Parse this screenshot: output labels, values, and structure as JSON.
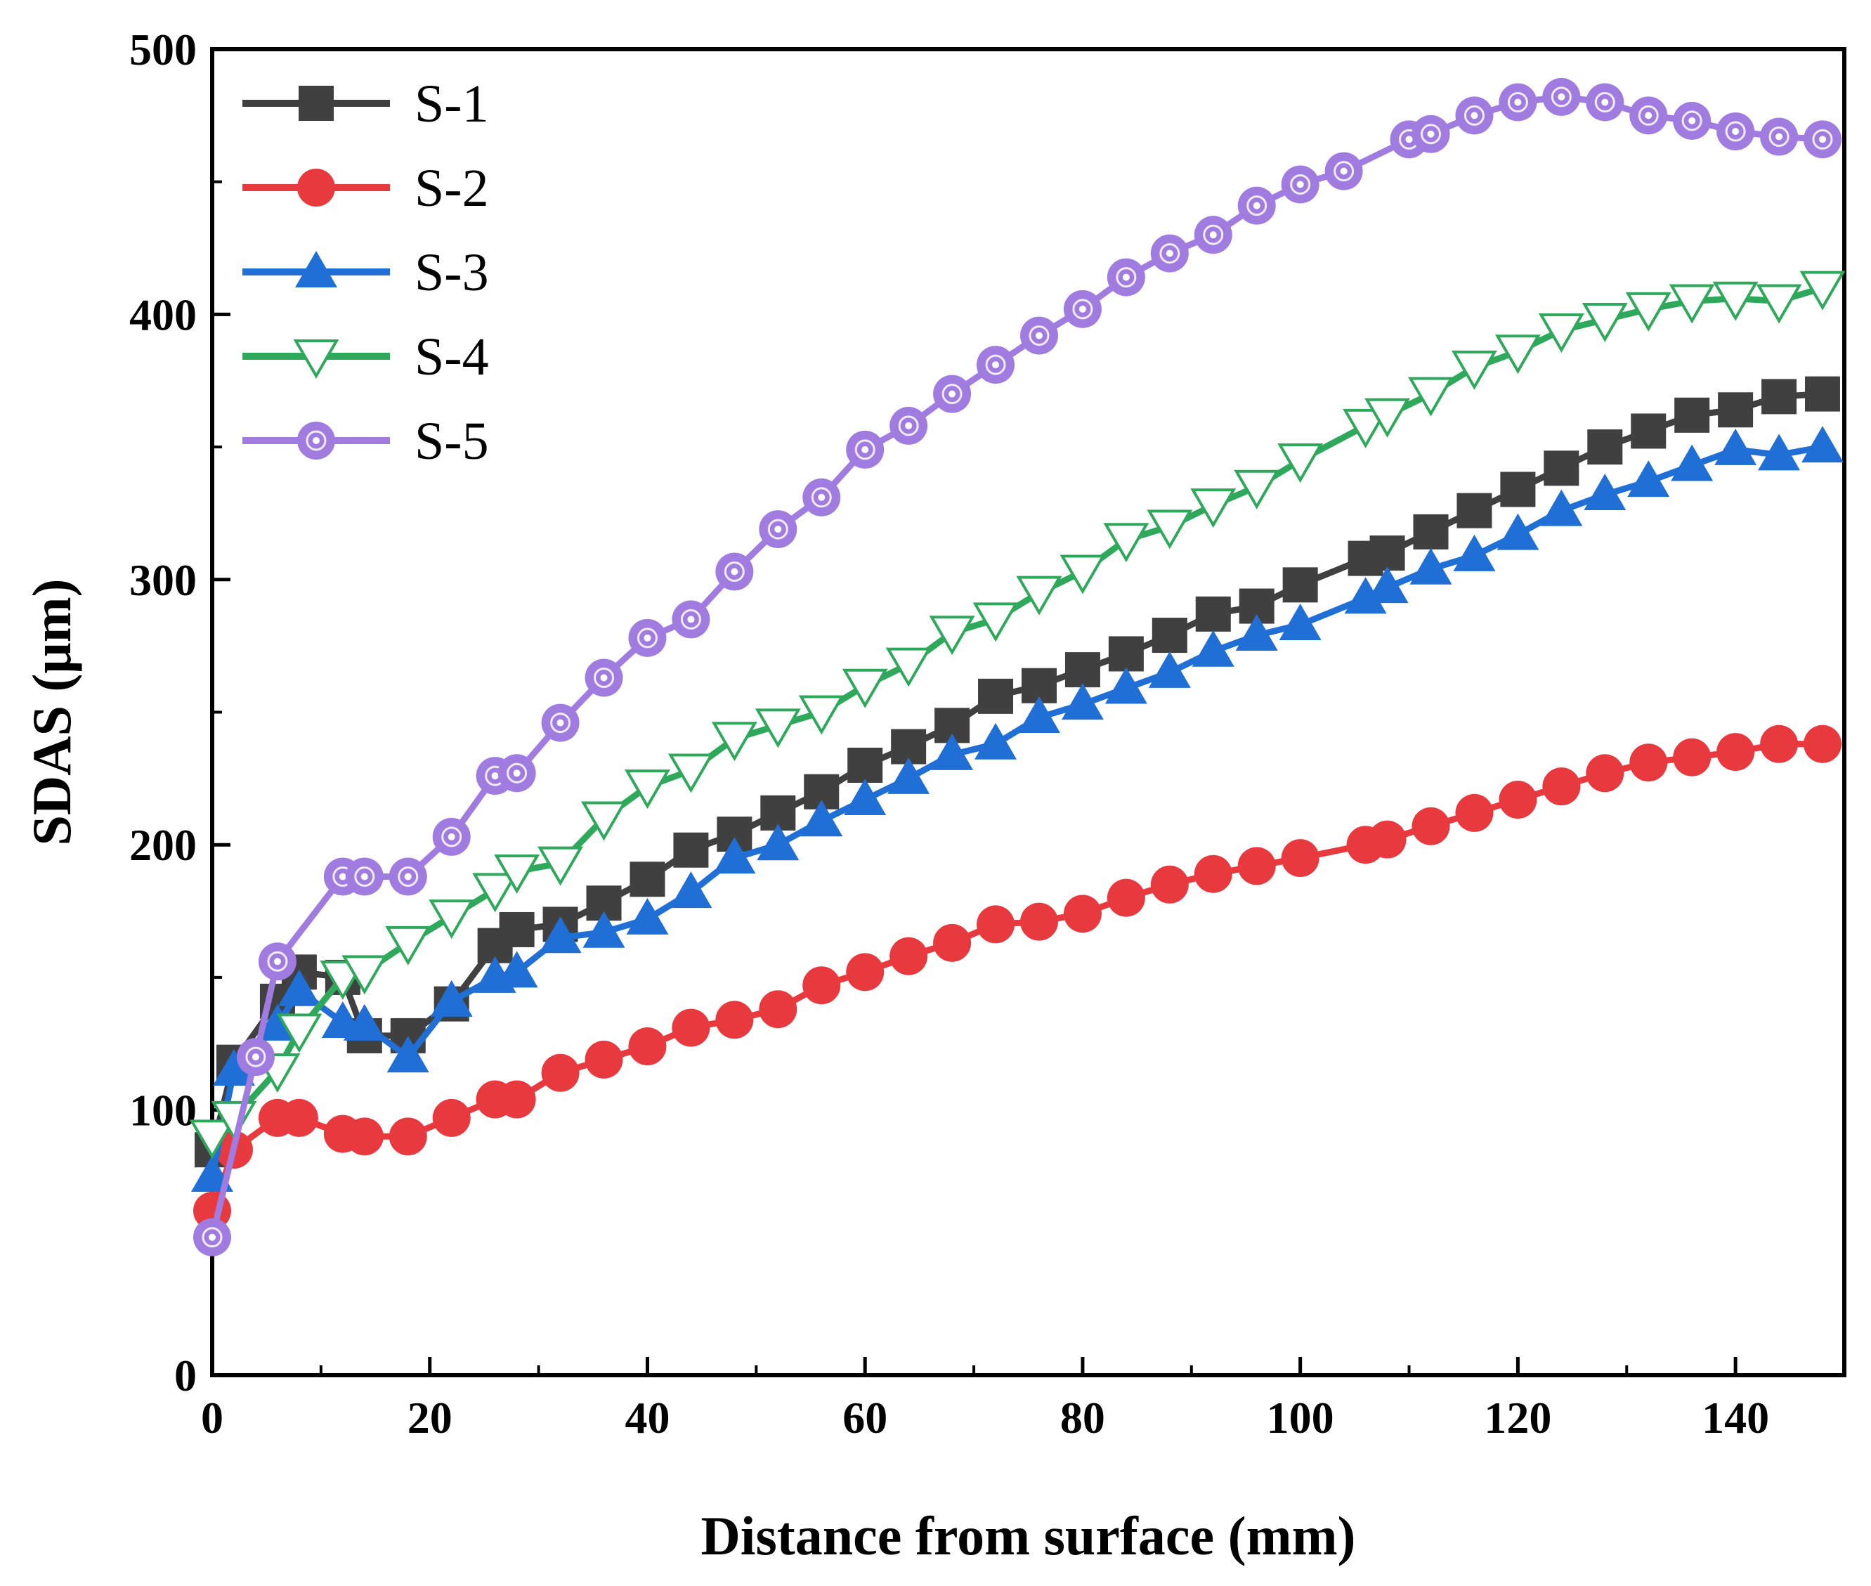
{
  "chart_data": {
    "type": "line",
    "title": "",
    "xlabel": "Distance from surface (mm)",
    "ylabel": "SDAS (μm)",
    "xlim": [
      0,
      150
    ],
    "ylim": [
      0,
      500
    ],
    "xticks": [
      0,
      20,
      40,
      60,
      80,
      100,
      120,
      140
    ],
    "xtick_labels": [
      "0",
      "20",
      "40",
      "60",
      "80",
      "100",
      "120",
      "140"
    ],
    "yticks": [
      0,
      100,
      200,
      300,
      400,
      500
    ],
    "ytick_labels": [
      "0",
      "100",
      "200",
      "300",
      "400",
      "500"
    ],
    "legend_position": "top-left",
    "grid": false,
    "series": [
      {
        "name": "S-1",
        "color": "#404040",
        "marker": "square",
        "filled": true,
        "x": [
          0,
          2,
          6,
          8,
          12,
          14,
          18,
          22,
          26,
          28,
          32,
          36,
          40,
          44,
          48,
          52,
          56,
          60,
          64,
          68,
          72,
          76,
          80,
          84,
          88,
          92,
          96,
          100,
          106,
          108,
          112,
          116,
          120,
          124,
          128,
          132,
          136,
          140,
          144,
          148
        ],
        "y": [
          85,
          118,
          141,
          152,
          150,
          128,
          128,
          140,
          162,
          168,
          170,
          178,
          187,
          198,
          204,
          212,
          220,
          230,
          237,
          245,
          256,
          260,
          266,
          272,
          279,
          287,
          290,
          298,
          308,
          310,
          318,
          326,
          334,
          342,
          350,
          356,
          362,
          364,
          369,
          370
        ]
      },
      {
        "name": "S-2",
        "color": "#e8393e",
        "marker": "circle",
        "filled": true,
        "x": [
          0,
          2,
          6,
          8,
          12,
          14,
          18,
          22,
          26,
          28,
          32,
          36,
          40,
          44,
          48,
          52,
          56,
          60,
          64,
          68,
          72,
          76,
          80,
          84,
          88,
          92,
          96,
          100,
          106,
          108,
          112,
          116,
          120,
          124,
          128,
          132,
          136,
          140,
          144,
          148
        ],
        "y": [
          62,
          85,
          97,
          97,
          91,
          90,
          90,
          97,
          104,
          104,
          114,
          119,
          124,
          131,
          134,
          138,
          147,
          152,
          158,
          163,
          170,
          171,
          174,
          180,
          185,
          189,
          192,
          195,
          200,
          202,
          207,
          212,
          217,
          222,
          227,
          231,
          233,
          235,
          238,
          238
        ]
      },
      {
        "name": "S-3",
        "color": "#1f6fd6",
        "marker": "triangle-up",
        "filled": true,
        "x": [
          0,
          2,
          6,
          8,
          12,
          14,
          18,
          22,
          26,
          28,
          32,
          36,
          40,
          44,
          48,
          52,
          56,
          60,
          64,
          68,
          72,
          76,
          80,
          84,
          88,
          92,
          96,
          100,
          106,
          108,
          112,
          116,
          120,
          124,
          128,
          132,
          136,
          140,
          144,
          148
        ],
        "y": [
          75,
          115,
          132,
          145,
          133,
          132,
          120,
          141,
          150,
          152,
          165,
          167,
          172,
          182,
          195,
          200,
          209,
          217,
          225,
          234,
          238,
          248,
          253,
          259,
          265,
          273,
          279,
          283,
          293,
          297,
          304,
          309,
          317,
          326,
          332,
          337,
          343,
          349,
          347,
          350
        ]
      },
      {
        "name": "S-4",
        "color": "#2ea85a",
        "marker": "triangle-down",
        "filled": false,
        "x": [
          0,
          2,
          6,
          8,
          12,
          14,
          18,
          22,
          26,
          28,
          32,
          36,
          40,
          44,
          48,
          52,
          56,
          60,
          64,
          68,
          72,
          76,
          80,
          84,
          88,
          92,
          96,
          100,
          106,
          108,
          112,
          116,
          120,
          124,
          128,
          132,
          136,
          140,
          144,
          148
        ],
        "y": [
          90,
          97,
          115,
          130,
          150,
          152,
          163,
          173,
          183,
          190,
          193,
          210,
          222,
          228,
          240,
          245,
          250,
          260,
          268,
          280,
          285,
          295,
          303,
          315,
          320,
          328,
          335,
          345,
          358,
          362,
          370,
          380,
          386,
          394,
          398,
          402,
          405,
          406,
          405,
          410
        ]
      },
      {
        "name": "S-5",
        "color": "#a07be0",
        "marker": "circle-ring",
        "filled": true,
        "x": [
          0,
          4,
          6,
          12,
          14,
          18,
          22,
          26,
          28,
          32,
          36,
          40,
          44,
          48,
          52,
          56,
          60,
          64,
          68,
          72,
          76,
          80,
          84,
          88,
          92,
          96,
          100,
          104,
          110,
          112,
          116,
          120,
          124,
          128,
          132,
          136,
          140,
          144,
          148
        ],
        "y": [
          52,
          120,
          156,
          188,
          188,
          188,
          203,
          226,
          227,
          246,
          263,
          278,
          285,
          303,
          319,
          331,
          349,
          358,
          370,
          381,
          392,
          402,
          414,
          423,
          430,
          441,
          449,
          454,
          466,
          468,
          475,
          480,
          482,
          480,
          475,
          473,
          469,
          467,
          466
        ]
      }
    ]
  }
}
